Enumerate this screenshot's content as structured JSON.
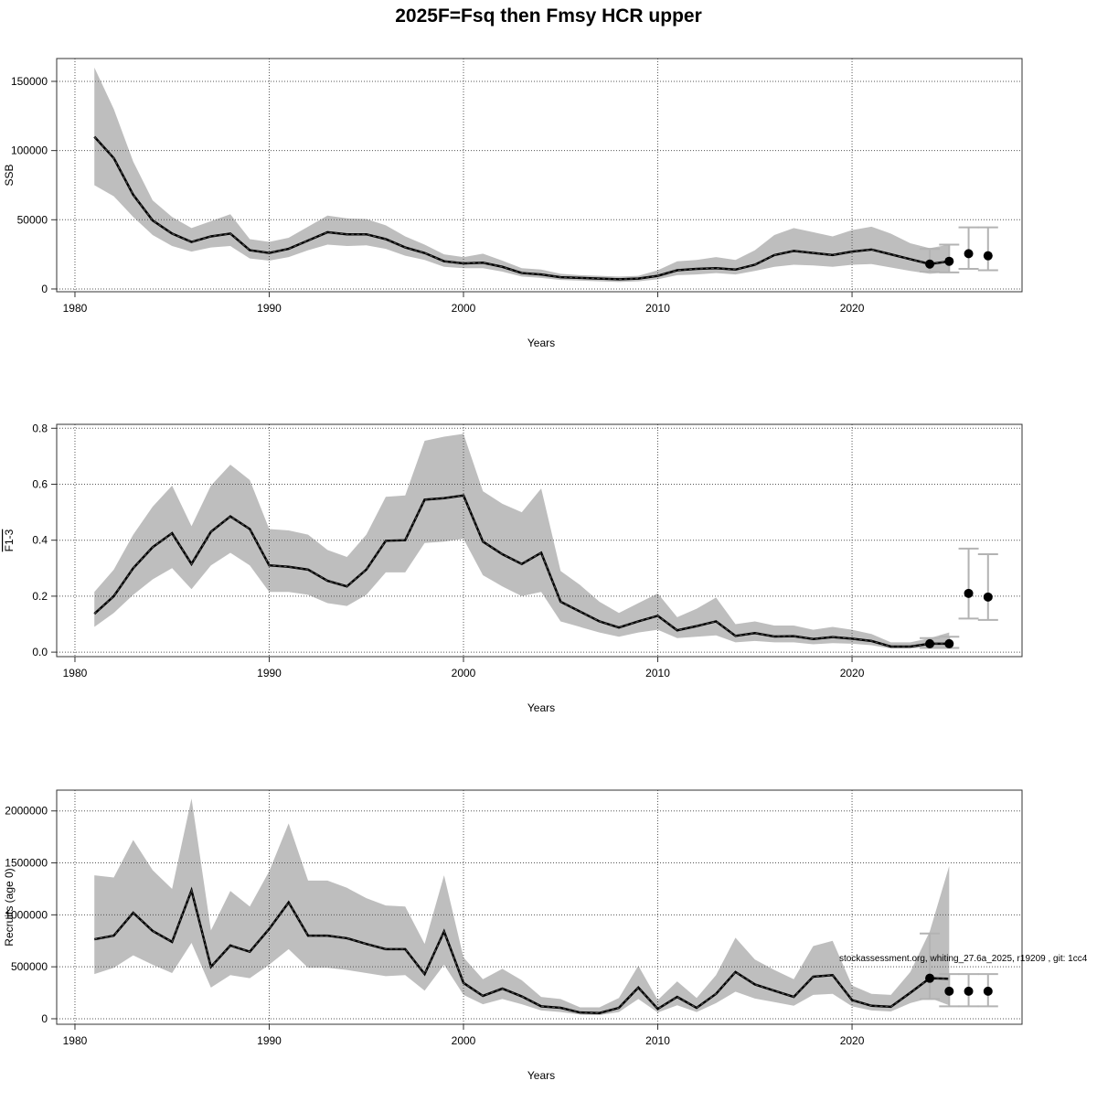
{
  "title": "2025F=Fsq then Fmsy HCR upper",
  "annotation": "stockassessment.org, whiting_27.6a_2025, r19209 , git: 1cc4",
  "colors": {
    "band": "#bebebe",
    "line": "#000000",
    "errorbar": "#b3b3b3",
    "grid": "#555555"
  },
  "chart_data": [
    {
      "type": "line",
      "xlabel": "Years",
      "ylabel": "SSB",
      "xlim": [
        1979.06,
        2028.75
      ],
      "ylim": [
        -2000,
        166500
      ],
      "xticks": [
        1980,
        1990,
        2000,
        2010,
        2020
      ],
      "yticks": [
        0,
        50000,
        100000,
        150000
      ],
      "ytick_labels": [
        "0",
        "50000",
        "100000",
        "150000"
      ],
      "grid": true,
      "years": [
        1981,
        1982,
        1983,
        1984,
        1985,
        1986,
        1987,
        1988,
        1989,
        1990,
        1991,
        1992,
        1993,
        1994,
        1995,
        1996,
        1997,
        1998,
        1999,
        2000,
        2001,
        2002,
        2003,
        2004,
        2005,
        2006,
        2007,
        2008,
        2009,
        2010,
        2011,
        2012,
        2013,
        2014,
        2015,
        2016,
        2017,
        2018,
        2019,
        2020,
        2021,
        2022,
        2023,
        2024,
        2025
      ],
      "estimate": [
        110000,
        94500,
        68000,
        49500,
        40000,
        34000,
        38000,
        40000,
        28000,
        26000,
        29000,
        35000,
        41000,
        39500,
        39500,
        36000,
        30000,
        26000,
        20000,
        18500,
        19000,
        16000,
        11500,
        10500,
        8500,
        8000,
        7500,
        7000,
        7500,
        9500,
        13500,
        14500,
        15000,
        14000,
        17500,
        24500,
        27500,
        26000,
        24500,
        27000,
        28500,
        25000,
        21500,
        18000,
        20000
      ],
      "low": [
        75000,
        67000,
        52000,
        39000,
        31000,
        27000,
        30000,
        31000,
        22000,
        20500,
        23000,
        28000,
        32000,
        31000,
        31500,
        29000,
        24000,
        21000,
        16000,
        15000,
        15000,
        12500,
        9000,
        8000,
        6500,
        6000,
        5500,
        5000,
        5500,
        7000,
        10000,
        10500,
        11500,
        10500,
        13000,
        16000,
        17500,
        17000,
        16000,
        17500,
        18000,
        15500,
        13000,
        11000,
        12000
      ],
      "high": [
        160000,
        130000,
        92000,
        64000,
        52000,
        44000,
        49000,
        54000,
        36000,
        34000,
        37000,
        45000,
        53000,
        51000,
        50500,
        46000,
        38000,
        32000,
        25000,
        23000,
        25500,
        20500,
        15000,
        14000,
        11000,
        10000,
        9500,
        9000,
        9500,
        13500,
        20000,
        21000,
        23000,
        21000,
        28000,
        39000,
        44000,
        41000,
        38000,
        42500,
        45000,
        40000,
        33000,
        29500,
        32000
      ],
      "forecast": [
        {
          "year": 2024,
          "value": 18000,
          "low": 12500,
          "high": 29000
        },
        {
          "year": 2025,
          "value": 20000,
          "low": 12000,
          "high": 32000
        },
        {
          "year": 2026,
          "value": 25500,
          "low": 14500,
          "high": 44500
        },
        {
          "year": 2027,
          "value": 24000,
          "low": 13500,
          "high": 44500
        }
      ]
    },
    {
      "type": "line",
      "xlabel": "Years",
      "ylabel": "F1-3",
      "xlim": [
        1979.06,
        2028.75
      ],
      "ylim": [
        -0.016,
        0.814
      ],
      "xticks": [
        1980,
        1990,
        2000,
        2010,
        2020
      ],
      "yticks": [
        0,
        0.2,
        0.4,
        0.6,
        0.8
      ],
      "ytick_labels": [
        "0.0",
        "0.2",
        "0.4",
        "0.6",
        "0.8"
      ],
      "grid": true,
      "years": [
        1981,
        1982,
        1983,
        1984,
        1985,
        1986,
        1987,
        1988,
        1989,
        1990,
        1991,
        1992,
        1993,
        1994,
        1995,
        1996,
        1997,
        1998,
        1999,
        2000,
        2001,
        2002,
        2003,
        2004,
        2005,
        2006,
        2007,
        2008,
        2009,
        2010,
        2011,
        2012,
        2013,
        2014,
        2015,
        2016,
        2017,
        2018,
        2019,
        2020,
        2021,
        2022,
        2023,
        2024,
        2025
      ],
      "estimate": [
        0.137,
        0.2,
        0.3,
        0.375,
        0.425,
        0.315,
        0.43,
        0.485,
        0.44,
        0.31,
        0.305,
        0.295,
        0.255,
        0.235,
        0.295,
        0.398,
        0.4,
        0.545,
        0.55,
        0.56,
        0.395,
        0.35,
        0.315,
        0.355,
        0.18,
        0.145,
        0.11,
        0.088,
        0.11,
        0.13,
        0.078,
        0.093,
        0.11,
        0.058,
        0.068,
        0.056,
        0.057,
        0.047,
        0.054,
        0.048,
        0.04,
        0.02,
        0.02,
        0.03,
        0.03
      ],
      "low": [
        0.09,
        0.14,
        0.205,
        0.26,
        0.3,
        0.225,
        0.31,
        0.355,
        0.31,
        0.215,
        0.215,
        0.205,
        0.175,
        0.165,
        0.205,
        0.285,
        0.285,
        0.39,
        0.395,
        0.405,
        0.275,
        0.235,
        0.2,
        0.215,
        0.11,
        0.09,
        0.07,
        0.055,
        0.07,
        0.08,
        0.05,
        0.055,
        0.06,
        0.035,
        0.04,
        0.035,
        0.035,
        0.028,
        0.032,
        0.03,
        0.025,
        0.013,
        0.013,
        0.018,
        0.018
      ],
      "high": [
        0.215,
        0.295,
        0.42,
        0.52,
        0.595,
        0.45,
        0.595,
        0.67,
        0.615,
        0.44,
        0.435,
        0.42,
        0.365,
        0.34,
        0.42,
        0.555,
        0.56,
        0.755,
        0.77,
        0.78,
        0.575,
        0.53,
        0.5,
        0.585,
        0.29,
        0.24,
        0.18,
        0.14,
        0.175,
        0.21,
        0.125,
        0.155,
        0.195,
        0.1,
        0.11,
        0.095,
        0.095,
        0.08,
        0.09,
        0.08,
        0.065,
        0.035,
        0.035,
        0.05,
        0.07
      ],
      "forecast": [
        {
          "year": 2024,
          "value": 0.03,
          "low": 0.015,
          "high": 0.05
        },
        {
          "year": 2025,
          "value": 0.03,
          "low": 0.015,
          "high": 0.055
        },
        {
          "year": 2026,
          "value": 0.21,
          "low": 0.12,
          "high": 0.37
        },
        {
          "year": 2027,
          "value": 0.197,
          "low": 0.115,
          "high": 0.35
        }
      ]
    },
    {
      "type": "line",
      "xlabel": "Years",
      "ylabel": "Recruits (age 0)",
      "xlim": [
        1979.06,
        2028.75
      ],
      "ylim": [
        -53000,
        2200000
      ],
      "xticks": [
        1980,
        1990,
        2000,
        2010,
        2020
      ],
      "yticks": [
        0,
        500000,
        1000000,
        1500000,
        2000000
      ],
      "ytick_labels": [
        "0",
        "500000",
        "1000000",
        "1500000",
        "2000000"
      ],
      "grid": true,
      "years": [
        1981,
        1982,
        1983,
        1984,
        1985,
        1986,
        1987,
        1988,
        1989,
        1990,
        1991,
        1992,
        1993,
        1994,
        1995,
        1996,
        1997,
        1998,
        1999,
        2000,
        2001,
        2002,
        2003,
        2004,
        2005,
        2006,
        2007,
        2008,
        2009,
        2010,
        2011,
        2012,
        2013,
        2014,
        2015,
        2016,
        2017,
        2018,
        2019,
        2020,
        2021,
        2022,
        2023,
        2024,
        2025
      ],
      "estimate": [
        765000,
        800000,
        1020000,
        845000,
        740000,
        1235000,
        500000,
        705000,
        645000,
        865000,
        1120000,
        800000,
        800000,
        775000,
        720000,
        670000,
        670000,
        430000,
        840000,
        345000,
        220000,
        290000,
        215000,
        120000,
        105000,
        60000,
        55000,
        105000,
        300000,
        95000,
        210000,
        105000,
        240000,
        450000,
        330000,
        270000,
        210000,
        405000,
        420000,
        180000,
        125000,
        115000,
        250000,
        390000,
        385000
      ],
      "low": [
        430000,
        490000,
        610000,
        520000,
        440000,
        730000,
        300000,
        420000,
        390000,
        520000,
        670000,
        490000,
        490000,
        470000,
        440000,
        410000,
        420000,
        270000,
        520000,
        230000,
        140000,
        190000,
        140000,
        80000,
        65000,
        40000,
        35000,
        65000,
        190000,
        60000,
        130000,
        65000,
        150000,
        260000,
        195000,
        160000,
        125000,
        230000,
        240000,
        120000,
        80000,
        70000,
        150000,
        200000,
        130000
      ],
      "high": [
        1380000,
        1360000,
        1720000,
        1430000,
        1250000,
        2120000,
        850000,
        1230000,
        1080000,
        1420000,
        1880000,
        1330000,
        1330000,
        1260000,
        1160000,
        1090000,
        1080000,
        720000,
        1380000,
        590000,
        380000,
        480000,
        370000,
        210000,
        190000,
        110000,
        110000,
        200000,
        510000,
        180000,
        360000,
        200000,
        420000,
        780000,
        570000,
        470000,
        380000,
        700000,
        750000,
        320000,
        240000,
        230000,
        450000,
        840000,
        1470000
      ],
      "forecast": [
        {
          "year": 2024,
          "value": 390000,
          "low": 190000,
          "high": 820000
        },
        {
          "year": 2025,
          "value": 265000,
          "low": 120000,
          "high": 430000
        },
        {
          "year": 2026,
          "value": 265000,
          "low": 120000,
          "high": 430000
        },
        {
          "year": 2027,
          "value": 265000,
          "low": 120000,
          "high": 430000
        }
      ]
    }
  ]
}
